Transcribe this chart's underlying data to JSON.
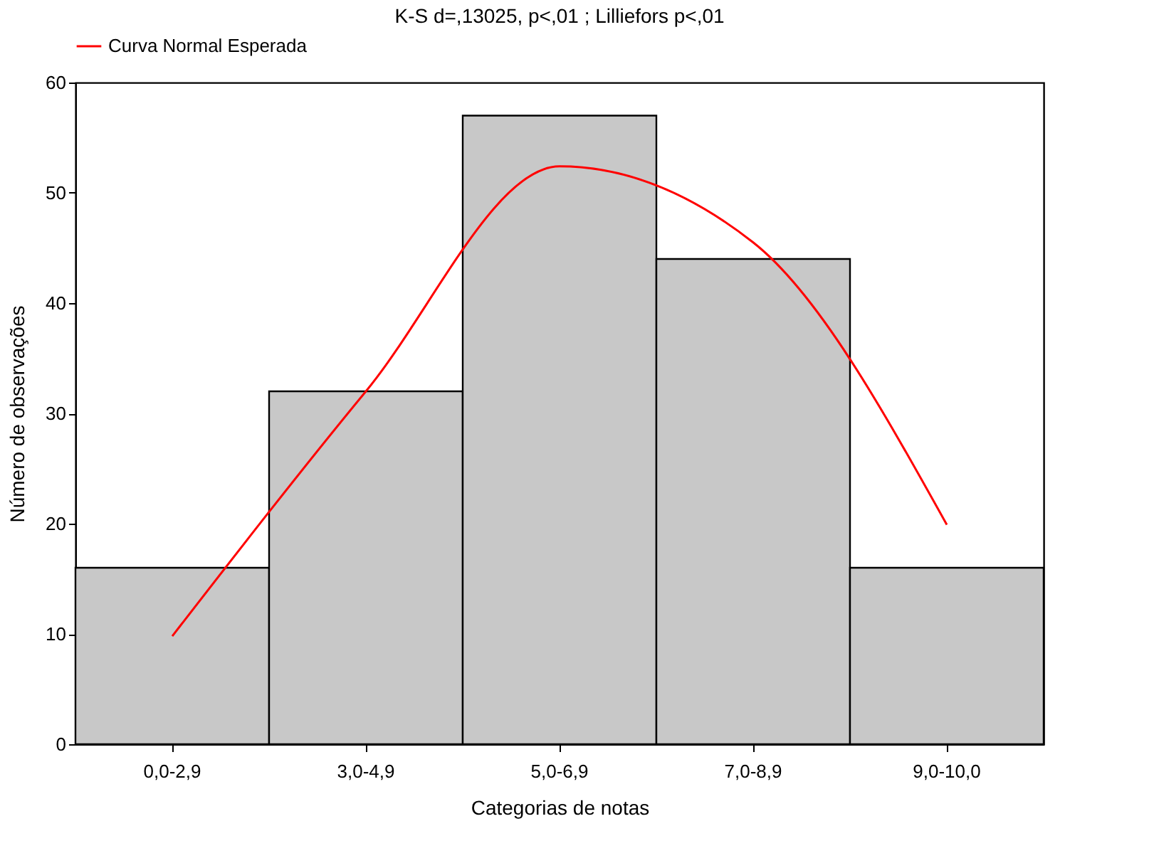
{
  "chart_data": {
    "type": "bar",
    "title": "K-S d=,13025, p<,01 ; Lilliefors p<,01",
    "xlabel": "Categorias de notas",
    "ylabel": "Número de observações",
    "categories": [
      "0,0-2,9",
      "3,0-4,9",
      "5,0-6,9",
      "7,0-8,9",
      "9,0-10,0"
    ],
    "series": [
      {
        "values": [
          16,
          32,
          57,
          44,
          16
        ],
        "color": "#c8c8c8"
      },
      {
        "name": "Curva Normal Esperada",
        "type": "line",
        "color": "#ff0000",
        "values": [
          9.8,
          32.0,
          52.4,
          45.5,
          19.9
        ]
      }
    ],
    "ylim": [
      0,
      60
    ],
    "yticks": [
      0,
      10,
      20,
      30,
      40,
      50,
      60
    ],
    "grid": false,
    "legend": "top"
  }
}
